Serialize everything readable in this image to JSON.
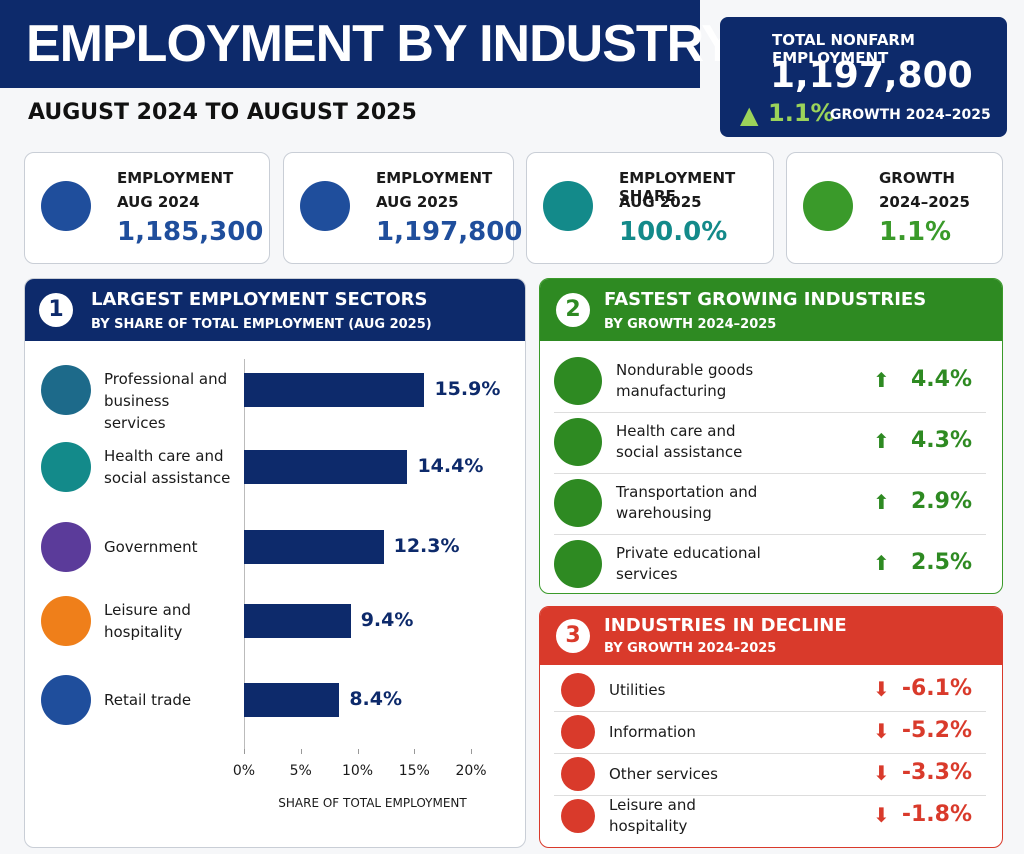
{
  "header": {
    "title": "EMPLOYMENT BY INDUSTRY",
    "subtitle": "AUGUST 2024 TO AUGUST 2025"
  },
  "total": {
    "label": "TOTAL NONFARM EMPLOYMENT",
    "value": "1,197,800",
    "growth": "1.1%",
    "growth_label": "GROWTH 2024–2025"
  },
  "kpis": [
    {
      "label": [
        "EMPLOYMENT",
        "AUG 2024"
      ],
      "value": "1,185,300",
      "color": "#1f4e9c"
    },
    {
      "label": [
        "EMPLOYMENT",
        "AUG 2025"
      ],
      "value": "1,197,800",
      "color": "#1f4e9c"
    },
    {
      "label": [
        "EMPLOYMENT SHARE",
        "AUG 2025"
      ],
      "value": "100.0%",
      "color": "#138a8a"
    },
    {
      "label": [
        "GROWTH",
        "2024–2025"
      ],
      "value": "1.1%",
      "color": "#3a9a2a"
    }
  ],
  "sections": {
    "largest": {
      "number": "1",
      "title": "LARGEST EMPLOYMENT SECTORS",
      "subtitle": "BY SHARE OF TOTAL EMPLOYMENT (AUG 2025)"
    },
    "growing": {
      "number": "2",
      "title": "FASTEST GROWING INDUSTRIES",
      "subtitle": "BY GROWTH 2024–2025",
      "items": [
        {
          "name": "Nondurable goods manufacturing",
          "value": "4.4%"
        },
        {
          "name": "Health care and social assistance",
          "value": "4.3%"
        },
        {
          "name": "Transportation and warehousing",
          "value": "2.9%"
        },
        {
          "name": "Private educational services",
          "value": "2.5%"
        }
      ]
    },
    "decline": {
      "number": "3",
      "title": "INDUSTRIES IN DECLINE",
      "subtitle": "BY GROWTH 2024–2025",
      "items": [
        {
          "name": "Utilities",
          "value": "-6.1%"
        },
        {
          "name": "Information",
          "value": "-5.2%"
        },
        {
          "name": "Other services",
          "value": "-3.3%"
        },
        {
          "name": "Leisure and hospitality",
          "value": "-1.8%"
        }
      ]
    }
  },
  "chart_data": {
    "type": "bar",
    "orientation": "horizontal",
    "categories": [
      "Professional and business services",
      "Health care and social assistance",
      "Government",
      "Leisure and hospitality",
      "Retail trade"
    ],
    "values": [
      15.9,
      14.4,
      12.3,
      9.4,
      8.4
    ],
    "value_labels": [
      "15.9%",
      "14.4%",
      "12.3%",
      "9.4%",
      "8.4%"
    ],
    "icon_colors": [
      "#1d6a8a",
      "#138a8a",
      "#5b3b9a",
      "#ef7f1a",
      "#1f4e9c"
    ],
    "color": "#0d2a6b",
    "xlim": [
      0,
      20
    ],
    "xticks": [
      {
        "value": 0,
        "label": "0%"
      },
      {
        "value": 5,
        "label": "5%"
      },
      {
        "value": 10,
        "label": "10%"
      },
      {
        "value": 15,
        "label": "15%"
      },
      {
        "value": 20,
        "label": "20%"
      }
    ],
    "x_label": "SHARE OF TOTAL EMPLOYMENT"
  }
}
